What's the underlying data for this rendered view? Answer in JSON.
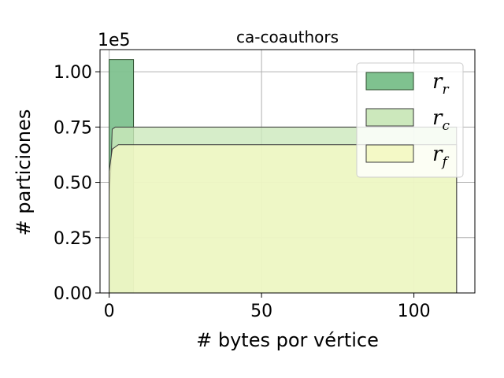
{
  "chart_data": {
    "type": "histogram",
    "title": "ca-coauthors",
    "xlabel": "# bytes por vértice",
    "ylabel": "# particiones",
    "y_scale_label": "1e5",
    "xlim": [
      -3,
      120
    ],
    "ylim": [
      0,
      1.1
    ],
    "x_ticks": [
      0,
      50,
      100
    ],
    "x_tick_labels": [
      "0",
      "50",
      "100"
    ],
    "y_ticks": [
      0.0,
      0.25,
      0.5,
      0.75,
      1.0
    ],
    "y_tick_labels": [
      "0.00",
      "0.25",
      "0.50",
      "0.75",
      "1.00"
    ],
    "grid": true,
    "legend_position": "upper-right",
    "series": [
      {
        "name_main": "r",
        "name_sub": "r",
        "style": "bar",
        "color": "#7fc28f",
        "edge": "#2f4f2f",
        "bins": [
          {
            "x0": 0,
            "x1": 8,
            "value": 1.055
          }
        ]
      },
      {
        "name_main": "r",
        "name_sub": "c",
        "style": "step",
        "color": "#cce8bc",
        "edge": "#3a3a3a",
        "points": [
          [
            0,
            0
          ],
          [
            0,
            0.44
          ],
          [
            0.5,
            0.54
          ],
          [
            1,
            0.74
          ],
          [
            2,
            0.75
          ],
          [
            114,
            0.75
          ],
          [
            114,
            0
          ]
        ]
      },
      {
        "name_main": "r",
        "name_sub": "f",
        "style": "step",
        "color": "#f4f9c6",
        "edge": "#3a3a3a",
        "points": [
          [
            0,
            0
          ],
          [
            0,
            0.55
          ],
          [
            1,
            0.65
          ],
          [
            2,
            0.66
          ],
          [
            3,
            0.67
          ],
          [
            114,
            0.67
          ],
          [
            114,
            0
          ]
        ]
      }
    ]
  }
}
